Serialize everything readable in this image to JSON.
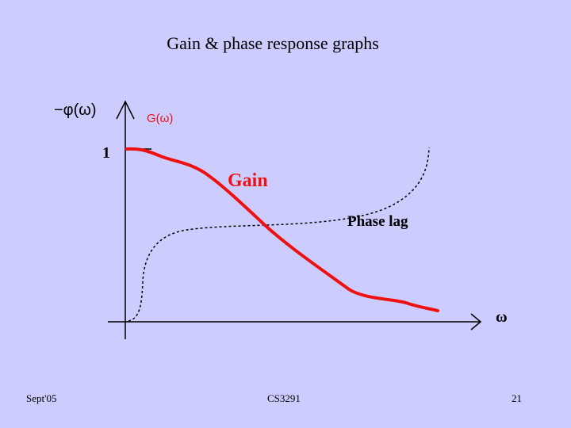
{
  "slide": {
    "title": "Gain & phase response graphs",
    "footer_left": "Sept'05",
    "footer_center": "CS3291",
    "footer_right": "21"
  },
  "diagram": {
    "y_axis_label_phase": "−φ(ω)",
    "y_axis_label_gain": "G(ω)",
    "y_tick_one": "1",
    "x_axis_label": "ω",
    "gain_label": "Gain",
    "phase_label": "Phase lag",
    "colors": {
      "background": "#ccccff",
      "gain_curve": "#ee1111",
      "gain_axis_label": "#ee1111",
      "axes": "#000000"
    }
  }
}
